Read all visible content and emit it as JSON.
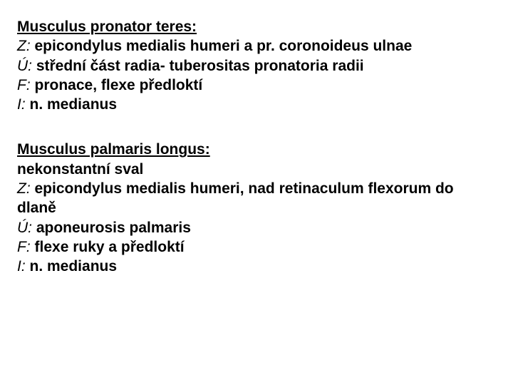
{
  "font_family": "Arial",
  "text_color": "#000000",
  "background_color": "#ffffff",
  "font_size_pt": 21,
  "muscles": [
    {
      "title": "Musculus pronator teres:",
      "lines": [
        {
          "label": "Z:",
          "text": " epicondylus medialis humeri a pr. coronoideus ulnae"
        },
        {
          "label": "Ú:",
          "text": " střední část radia- tuberositas pronatoria radii"
        },
        {
          "label": "F:",
          "text": " pronace, flexe předloktí"
        },
        {
          "label": "I:",
          "text": " n. medianus"
        }
      ]
    },
    {
      "title": "Musculus palmaris longus:",
      "lines": [
        {
          "label": "",
          "text": "nekonstantní sval"
        },
        {
          "label": "Z:",
          "text": " epicondylus medialis humeri, nad retinaculum flexorum do dlaně"
        },
        {
          "label": "Ú:",
          "text": " aponeurosis palmaris"
        },
        {
          "label": "F:",
          "text": " flexe ruky a předloktí"
        },
        {
          "label": "I:",
          "text": " n. medianus"
        }
      ]
    }
  ]
}
